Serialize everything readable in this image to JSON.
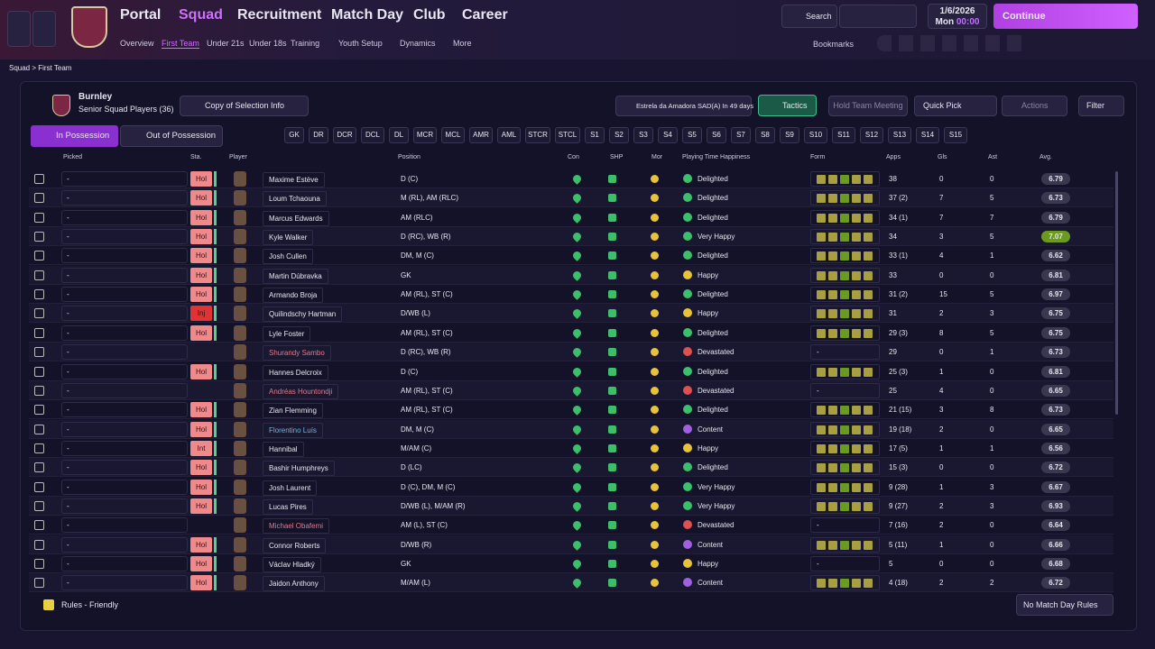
{
  "nav": {
    "items": [
      "Portal",
      "Squad",
      "Recruitment",
      "Match Day",
      "Club",
      "Career"
    ],
    "sub": [
      "Overview",
      "First Team",
      "Under 21s",
      "Under 18s",
      "Training",
      "Youth Setup",
      "Dynamics",
      "More"
    ],
    "search": "Search",
    "date": "1/6/2026",
    "day": "Mon",
    "time": "00:00",
    "continue": "Continue",
    "bookmarks": "Bookmarks"
  },
  "breadcrumb": [
    "Squad",
    "First Team"
  ],
  "panel": {
    "club": "Burnley",
    "subtitle": "Senior Squad Players (36)",
    "view": "Copy of Selection Info",
    "next_match": "Estrela da Amadora SAD(A) In 49 days",
    "tactics": "Tactics",
    "meeting": "Hold Team Meeting",
    "quick_pick": "Quick Pick",
    "actions": "Actions",
    "filter": "Filter",
    "in_possession": "In Possession",
    "out_possession": "Out of Possession"
  },
  "positions": [
    "GK",
    "DR",
    "DCR",
    "DCL",
    "DL",
    "MCR",
    "MCL",
    "AMR",
    "AML",
    "STCR",
    "STCL",
    "S1",
    "S2",
    "S3",
    "S4",
    "S5",
    "S6",
    "S7",
    "S8",
    "S9",
    "S10",
    "S11",
    "S12",
    "S13",
    "S14",
    "S15"
  ],
  "headers": [
    "Picked",
    "Sta.",
    "Player",
    "Position",
    "Con",
    "SHP",
    "Mor",
    "Playing Time Happiness",
    "Form",
    "Apps",
    "Gls",
    "Ast",
    "Avg."
  ],
  "rows": [
    {
      "picked": "-",
      "status": "Hol",
      "name": "Maxime Estève",
      "position": "D (C)",
      "happiness": "Delighted",
      "hc": "#3bbf6a",
      "apps": "38",
      "gls": 0,
      "ast": 0,
      "avg": 6.79
    },
    {
      "picked": "-",
      "status": "Hol",
      "name": "Loum Tchaouna",
      "position": "M (RL), AM (RLC)",
      "happiness": "Delighted",
      "hc": "#3bbf6a",
      "apps": "37 (2)",
      "gls": 7,
      "ast": 5,
      "avg": 6.73
    },
    {
      "picked": "-",
      "status": "Hol",
      "name": "Marcus Edwards",
      "position": "AM (RLC)",
      "happiness": "Delighted",
      "hc": "#3bbf6a",
      "apps": "34 (1)",
      "gls": 7,
      "ast": 7,
      "avg": 6.79
    },
    {
      "picked": "-",
      "status": "Hol",
      "name": "Kyle Walker",
      "position": "D (RC), WB (R)",
      "happiness": "Very Happy",
      "hc": "#3bbf6a",
      "apps": "34",
      "gls": 3,
      "ast": 5,
      "avg": 7.07
    },
    {
      "picked": "-",
      "status": "Hol",
      "name": "Josh Cullen",
      "position": "DM, M (C)",
      "happiness": "Delighted",
      "hc": "#3bbf6a",
      "apps": "33 (1)",
      "gls": 4,
      "ast": 1,
      "avg": 6.62
    },
    {
      "picked": "-",
      "status": "Hol",
      "name": "Martin Dúbravka",
      "position": "GK",
      "happiness": "Happy",
      "hc": "#e8c33a",
      "apps": "33",
      "gls": 0,
      "ast": 0,
      "avg": 6.81
    },
    {
      "picked": "-",
      "status": "Hol",
      "name": "Armando Broja",
      "position": "AM (RL), ST (C)",
      "happiness": "Delighted",
      "hc": "#3bbf6a",
      "apps": "31 (2)",
      "gls": 15,
      "ast": 5,
      "avg": 6.97
    },
    {
      "picked": "-",
      "status": "Inj",
      "name": "Quilindschy Hartman",
      "position": "D/WB (L)",
      "happiness": "Happy",
      "hc": "#e8c33a",
      "apps": "31",
      "gls": 2,
      "ast": 3,
      "avg": 6.75
    },
    {
      "picked": "-",
      "status": "Hol",
      "name": "Lyle Foster",
      "position": "AM (RL), ST (C)",
      "happiness": "Delighted",
      "hc": "#3bbf6a",
      "apps": "29 (3)",
      "gls": 8,
      "ast": 5,
      "avg": 6.75
    },
    {
      "picked": "-",
      "name": "Shurandy Sambo",
      "name_color": "#e07a8a",
      "position": "D (RC), WB (R)",
      "happiness": "Devastated",
      "hc": "#e05050",
      "form": "-",
      "apps": "29",
      "gls": 0,
      "ast": 1,
      "avg": 6.73
    },
    {
      "picked": "-",
      "status": "Hol",
      "name": "Hannes Delcroix",
      "position": "D (C)",
      "happiness": "Delighted",
      "hc": "#3bbf6a",
      "apps": "25 (3)",
      "gls": 1,
      "ast": 0,
      "avg": 6.81
    },
    {
      "picked": "-",
      "name": "Andréas Hountondji",
      "name_color": "#e07a8a",
      "position": "AM (RL), ST (C)",
      "happiness": "Devastated",
      "hc": "#e05050",
      "form": "-",
      "apps": "25",
      "gls": 4,
      "ast": 0,
      "avg": 6.65
    },
    {
      "picked": "-",
      "status": "Hol",
      "name": "Zian Flemming",
      "position": "AM (RL), ST (C)",
      "happiness": "Delighted",
      "hc": "#3bbf6a",
      "apps": "21 (15)",
      "gls": 3,
      "ast": 8,
      "avg": 6.73
    },
    {
      "picked": "-",
      "status": "Hol",
      "name": "Florentino Luís",
      "name_color": "#6fb8d8",
      "position": "DM, M (C)",
      "happiness": "Content",
      "hc": "#a060e0",
      "apps": "19 (18)",
      "gls": 2,
      "ast": 0,
      "avg": 6.65
    },
    {
      "picked": "-",
      "status": "Int",
      "name": "Hannibal",
      "position": "M/AM (C)",
      "happiness": "Happy",
      "hc": "#e8c33a",
      "apps": "17 (5)",
      "gls": 1,
      "ast": 1,
      "avg": 6.56
    },
    {
      "picked": "-",
      "status": "Hol",
      "name": "Bashir Humphreys",
      "position": "D (LC)",
      "happiness": "Delighted",
      "hc": "#3bbf6a",
      "apps": "15 (3)",
      "gls": 0,
      "ast": 0,
      "avg": 6.72
    },
    {
      "picked": "-",
      "status": "Hol",
      "name": "Josh Laurent",
      "position": "D (C), DM, M (C)",
      "happiness": "Very Happy",
      "hc": "#3bbf6a",
      "apps": "9 (28)",
      "gls": 1,
      "ast": 3,
      "avg": 6.67
    },
    {
      "picked": "-",
      "status": "Hol",
      "name": "Lucas Pires",
      "position": "D/WB (L), M/AM (R)",
      "happiness": "Very Happy",
      "hc": "#3bbf6a",
      "apps": "9 (27)",
      "gls": 2,
      "ast": 3,
      "avg": 6.93
    },
    {
      "picked": "-",
      "name": "Michael Obafemi",
      "name_color": "#e07a8a",
      "position": "AM (L), ST (C)",
      "happiness": "Devastated",
      "hc": "#e05050",
      "form": "-",
      "apps": "7 (16)",
      "gls": 2,
      "ast": 0,
      "avg": 6.64
    },
    {
      "picked": "-",
      "status": "Hol",
      "name": "Connor Roberts",
      "position": "D/WB (R)",
      "happiness": "Content",
      "hc": "#a060e0",
      "apps": "5 (11)",
      "gls": 1,
      "ast": 0,
      "avg": 6.66
    },
    {
      "picked": "-",
      "status": "Hol",
      "name": "Václav Hladký",
      "position": "GK",
      "happiness": "Happy",
      "hc": "#e8c33a",
      "form": "-",
      "apps": "5",
      "gls": 0,
      "ast": 0,
      "avg": 6.68
    },
    {
      "picked": "-",
      "status": "Hol",
      "name": "Jaidon Anthony",
      "position": "M/AM (L)",
      "happiness": "Content",
      "hc": "#a060e0",
      "apps": "4 (18)",
      "gls": 2,
      "ast": 2,
      "avg": 6.72
    }
  ],
  "footer": {
    "rules": "Rules - Friendly",
    "match_rules": "No Match Day Rules"
  }
}
